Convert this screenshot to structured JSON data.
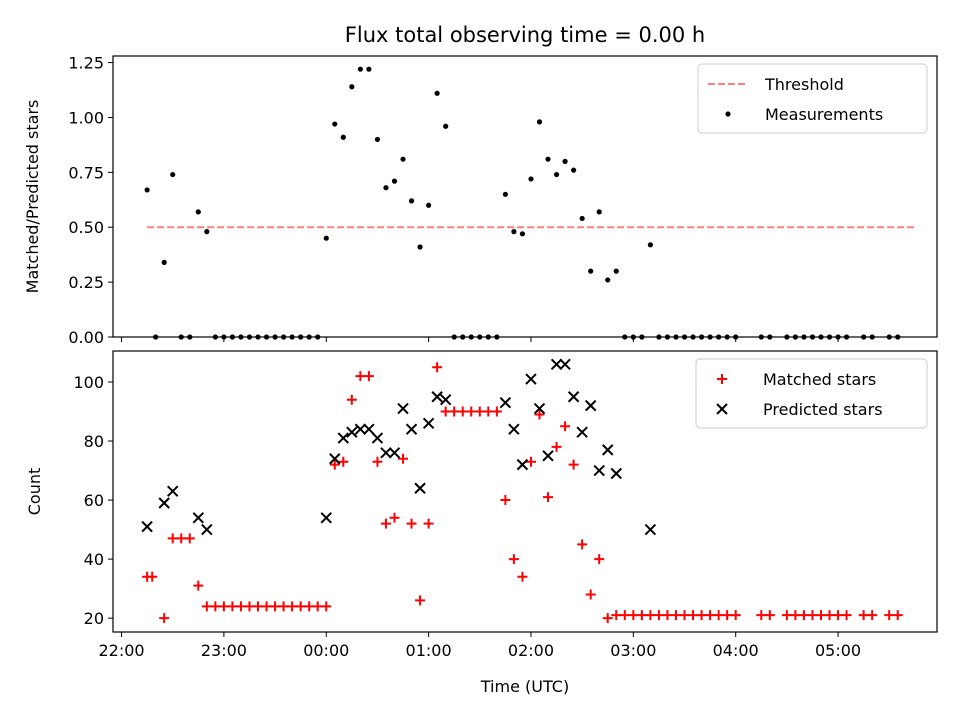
{
  "figure_title": "Flux total observing time = 0.00 h",
  "chart_data": [
    {
      "type": "scatter",
      "ylabel": "Matched/Predicted stars",
      "xlim": [
        "21:55",
        "05:58"
      ],
      "ylim": [
        0,
        1.28
      ],
      "y_ticks": [
        "0.00",
        "0.25",
        "0.50",
        "0.75",
        "1.00",
        "1.25"
      ],
      "legend_position": "upper right",
      "threshold": {
        "name": "Threshold",
        "value": 0.5,
        "x_range": [
          "22:15",
          "05:45"
        ],
        "color": "#ff7f7f",
        "style": "dashed"
      },
      "series": [
        {
          "name": "Measurements",
          "color": "#000000",
          "marker": "dot",
          "points": [
            [
              "22:15",
              0.67
            ],
            [
              "22:20",
              0.0
            ],
            [
              "22:25",
              0.34
            ],
            [
              "22:30",
              0.74
            ],
            [
              "22:35",
              0.0
            ],
            [
              "22:40",
              0.0
            ],
            [
              "22:45",
              0.57
            ],
            [
              "22:50",
              0.48
            ],
            [
              "22:55",
              0.0
            ],
            [
              "23:00",
              0.0
            ],
            [
              "23:05",
              0.0
            ],
            [
              "23:10",
              0.0
            ],
            [
              "23:15",
              0.0
            ],
            [
              "23:20",
              0.0
            ],
            [
              "23:25",
              0.0
            ],
            [
              "23:30",
              0.0
            ],
            [
              "23:35",
              0.0
            ],
            [
              "23:40",
              0.0
            ],
            [
              "23:45",
              0.0
            ],
            [
              "23:50",
              0.0
            ],
            [
              "23:55",
              0.0
            ],
            [
              "00:00",
              0.45
            ],
            [
              "00:05",
              0.97
            ],
            [
              "00:10",
              0.91
            ],
            [
              "00:15",
              1.14
            ],
            [
              "00:20",
              1.22
            ],
            [
              "00:25",
              1.22
            ],
            [
              "00:30",
              0.9
            ],
            [
              "00:35",
              0.68
            ],
            [
              "00:40",
              0.71
            ],
            [
              "00:45",
              0.81
            ],
            [
              "00:50",
              0.62
            ],
            [
              "00:55",
              0.41
            ],
            [
              "01:00",
              0.6
            ],
            [
              "01:05",
              1.11
            ],
            [
              "01:10",
              0.96
            ],
            [
              "01:15",
              0.0
            ],
            [
              "01:20",
              0.0
            ],
            [
              "01:25",
              0.0
            ],
            [
              "01:30",
              0.0
            ],
            [
              "01:35",
              0.0
            ],
            [
              "01:40",
              0.0
            ],
            [
              "01:45",
              0.65
            ],
            [
              "01:50",
              0.48
            ],
            [
              "01:55",
              0.47
            ],
            [
              "02:00",
              0.72
            ],
            [
              "02:05",
              0.98
            ],
            [
              "02:10",
              0.81
            ],
            [
              "02:15",
              0.74
            ],
            [
              "02:20",
              0.8
            ],
            [
              "02:25",
              0.76
            ],
            [
              "02:30",
              0.54
            ],
            [
              "02:35",
              0.3
            ],
            [
              "02:40",
              0.57
            ],
            [
              "02:45",
              0.26
            ],
            [
              "02:50",
              0.3
            ],
            [
              "02:55",
              0.0
            ],
            [
              "03:00",
              0.0
            ],
            [
              "03:05",
              0.0
            ],
            [
              "03:10",
              0.42
            ],
            [
              "03:15",
              0.0
            ],
            [
              "03:20",
              0.0
            ],
            [
              "03:25",
              0.0
            ],
            [
              "03:30",
              0.0
            ],
            [
              "03:35",
              0.0
            ],
            [
              "03:40",
              0.0
            ],
            [
              "03:45",
              0.0
            ],
            [
              "03:50",
              0.0
            ],
            [
              "03:55",
              0.0
            ],
            [
              "04:00",
              0.0
            ],
            [
              "04:15",
              0.0
            ],
            [
              "04:20",
              0.0
            ],
            [
              "04:30",
              0.0
            ],
            [
              "04:35",
              0.0
            ],
            [
              "04:40",
              0.0
            ],
            [
              "04:45",
              0.0
            ],
            [
              "04:50",
              0.0
            ],
            [
              "04:55",
              0.0
            ],
            [
              "05:00",
              0.0
            ],
            [
              "05:05",
              0.0
            ],
            [
              "05:15",
              0.0
            ],
            [
              "05:20",
              0.0
            ],
            [
              "05:30",
              0.0
            ],
            [
              "05:35",
              0.0
            ]
          ]
        }
      ]
    },
    {
      "type": "scatter",
      "xlabel": "Time (UTC)",
      "ylabel": "Count",
      "xlim": [
        "21:55",
        "05:58"
      ],
      "ylim": [
        15.3,
        110.5
      ],
      "x_ticks": [
        "22:00",
        "23:00",
        "00:00",
        "01:00",
        "02:00",
        "03:00",
        "04:00",
        "05:00"
      ],
      "y_ticks": [
        "20",
        "40",
        "60",
        "80",
        "100"
      ],
      "legend_position": "upper right",
      "series": [
        {
          "name": "Matched stars",
          "color": "#ff0000",
          "marker": "plus",
          "points": [
            [
              "22:15",
              34
            ],
            [
              "22:18",
              34
            ],
            [
              "22:25",
              20
            ],
            [
              "22:30",
              47
            ],
            [
              "22:35",
              47
            ],
            [
              "22:40",
              47
            ],
            [
              "22:45",
              31
            ],
            [
              "22:50",
              24
            ],
            [
              "22:55",
              24
            ],
            [
              "23:00",
              24
            ],
            [
              "23:05",
              24
            ],
            [
              "23:10",
              24
            ],
            [
              "23:15",
              24
            ],
            [
              "23:20",
              24
            ],
            [
              "23:25",
              24
            ],
            [
              "23:30",
              24
            ],
            [
              "23:35",
              24
            ],
            [
              "23:40",
              24
            ],
            [
              "23:45",
              24
            ],
            [
              "23:50",
              24
            ],
            [
              "23:55",
              24
            ],
            [
              "00:00",
              24
            ],
            [
              "00:05",
              72
            ],
            [
              "00:10",
              73
            ],
            [
              "00:15",
              94
            ],
            [
              "00:20",
              102
            ],
            [
              "00:25",
              102
            ],
            [
              "00:30",
              73
            ],
            [
              "00:35",
              52
            ],
            [
              "00:40",
              54
            ],
            [
              "00:45",
              74
            ],
            [
              "00:50",
              52
            ],
            [
              "00:55",
              26
            ],
            [
              "01:00",
              52
            ],
            [
              "01:05",
              105
            ],
            [
              "01:10",
              90
            ],
            [
              "01:15",
              90
            ],
            [
              "01:20",
              90
            ],
            [
              "01:25",
              90
            ],
            [
              "01:30",
              90
            ],
            [
              "01:35",
              90
            ],
            [
              "01:40",
              90
            ],
            [
              "01:45",
              60
            ],
            [
              "01:50",
              40
            ],
            [
              "01:55",
              34
            ],
            [
              "02:00",
              73
            ],
            [
              "02:05",
              89
            ],
            [
              "02:10",
              61
            ],
            [
              "02:15",
              78
            ],
            [
              "02:20",
              85
            ],
            [
              "02:25",
              72
            ],
            [
              "02:30",
              45
            ],
            [
              "02:35",
              28
            ],
            [
              "02:40",
              40
            ],
            [
              "02:45",
              20
            ],
            [
              "02:50",
              21
            ],
            [
              "02:55",
              21
            ],
            [
              "03:00",
              21
            ],
            [
              "03:05",
              21
            ],
            [
              "03:10",
              21
            ],
            [
              "03:15",
              21
            ],
            [
              "03:20",
              21
            ],
            [
              "03:25",
              21
            ],
            [
              "03:30",
              21
            ],
            [
              "03:35",
              21
            ],
            [
              "03:40",
              21
            ],
            [
              "03:45",
              21
            ],
            [
              "03:50",
              21
            ],
            [
              "03:55",
              21
            ],
            [
              "04:00",
              21
            ],
            [
              "04:15",
              21
            ],
            [
              "04:20",
              21
            ],
            [
              "04:30",
              21
            ],
            [
              "04:35",
              21
            ],
            [
              "04:40",
              21
            ],
            [
              "04:45",
              21
            ],
            [
              "04:50",
              21
            ],
            [
              "04:55",
              21
            ],
            [
              "05:00",
              21
            ],
            [
              "05:05",
              21
            ],
            [
              "05:15",
              21
            ],
            [
              "05:20",
              21
            ],
            [
              "05:30",
              21
            ],
            [
              "05:35",
              21
            ]
          ]
        },
        {
          "name": "Predicted stars",
          "color": "#000000",
          "marker": "x",
          "points": [
            [
              "22:15",
              51
            ],
            [
              "22:25",
              59
            ],
            [
              "22:30",
              63
            ],
            [
              "22:45",
              54
            ],
            [
              "22:50",
              50
            ],
            [
              "00:00",
              54
            ],
            [
              "00:05",
              74
            ],
            [
              "00:10",
              81
            ],
            [
              "00:15",
              83
            ],
            [
              "00:20",
              84
            ],
            [
              "00:25",
              84
            ],
            [
              "00:30",
              81
            ],
            [
              "00:35",
              76
            ],
            [
              "00:40",
              76
            ],
            [
              "00:45",
              91
            ],
            [
              "00:50",
              84
            ],
            [
              "00:55",
              64
            ],
            [
              "01:00",
              86
            ],
            [
              "01:05",
              95
            ],
            [
              "01:10",
              94
            ],
            [
              "01:45",
              93
            ],
            [
              "01:50",
              84
            ],
            [
              "01:55",
              72
            ],
            [
              "02:00",
              101
            ],
            [
              "02:05",
              91
            ],
            [
              "02:10",
              75
            ],
            [
              "02:15",
              106
            ],
            [
              "02:20",
              106
            ],
            [
              "02:25",
              95
            ],
            [
              "02:30",
              83
            ],
            [
              "02:35",
              92
            ],
            [
              "02:40",
              70
            ],
            [
              "02:45",
              77
            ],
            [
              "02:50",
              69
            ],
            [
              "03:10",
              50
            ]
          ]
        }
      ]
    }
  ]
}
